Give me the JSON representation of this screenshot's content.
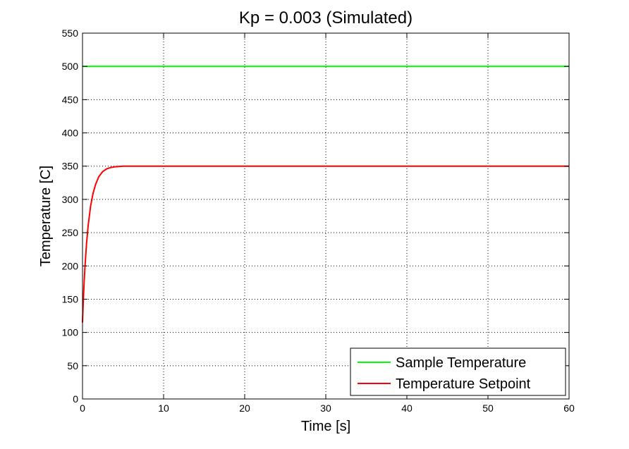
{
  "chart_data": {
    "type": "line",
    "title": "Kp = 0.003 (Simulated)",
    "xlabel": "Time [s]",
    "ylabel": "Temperature [C]",
    "xlim": [
      0,
      60
    ],
    "ylim": [
      0,
      550
    ],
    "xticks": [
      0,
      10,
      20,
      30,
      40,
      50,
      60
    ],
    "yticks": [
      0,
      50,
      100,
      150,
      200,
      250,
      300,
      350,
      400,
      450,
      500,
      550
    ],
    "grid": true,
    "legend_position": "bottom-right",
    "series": [
      {
        "name": "Sample Temperature",
        "color": "#00ff00",
        "x": [
          0,
          60
        ],
        "y": [
          500,
          500
        ]
      },
      {
        "name": "Temperature Setpoint",
        "color": "#ff0000",
        "x": [
          0,
          0.1,
          0.2,
          0.3,
          0.5,
          0.7,
          1.0,
          1.3,
          1.6,
          2.0,
          2.5,
          3.0,
          3.5,
          4.0,
          5.0,
          6.0,
          8.0,
          10.0,
          20.0,
          30.0,
          40.0,
          50.0,
          60.0
        ],
        "y": [
          115,
          148,
          175,
          198,
          234,
          261,
          290,
          309,
          322,
          334,
          342,
          346,
          348,
          349,
          350,
          350,
          350,
          350,
          350,
          350,
          350,
          350,
          350
        ]
      }
    ]
  }
}
